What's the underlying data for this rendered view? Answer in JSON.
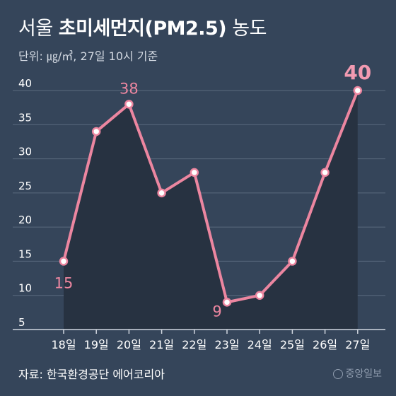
{
  "header": {
    "title_prefix": "서울",
    "title_strong": "초미세먼지(PM2.5)",
    "title_suffix": "농도",
    "subtitle": "단위: ㎍/㎥, 27일 10시 기준"
  },
  "footer": {
    "source": "자료: 한국환경공단 에어코리아",
    "brand": "중앙일보"
  },
  "colors": {
    "background": "#35455a",
    "area": "#273241",
    "line": "#ec86a0",
    "grid": "#5a6a7e",
    "tick": "#ffffff",
    "highlight": "#f29ab1"
  },
  "chart_data": {
    "type": "line",
    "x": [
      "18일",
      "19일",
      "20일",
      "21일",
      "22일",
      "23일",
      "24일",
      "25일",
      "26일",
      "27일"
    ],
    "series": [
      {
        "values": [
          15,
          34,
          38,
          25,
          28,
          9,
          10,
          15,
          28,
          40
        ]
      }
    ],
    "ylim": [
      5,
      40
    ],
    "yticks": [
      5,
      10,
      15,
      20,
      25,
      30,
      35,
      40
    ],
    "annotations": [
      {
        "index": 0,
        "label": "15"
      },
      {
        "index": 2,
        "label": "38"
      },
      {
        "index": 5,
        "label": "9"
      },
      {
        "index": 9,
        "label": "40"
      }
    ],
    "grid": true,
    "area_fill": true
  }
}
